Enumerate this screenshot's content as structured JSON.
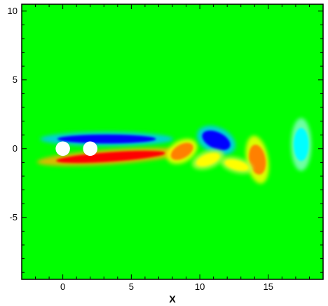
{
  "chart_data": {
    "type": "heatmap",
    "title": "",
    "xlabel": "X",
    "ylabel": "",
    "xlim": [
      -3,
      19
    ],
    "ylim": [
      -9.5,
      10.5
    ],
    "x_ticks": [
      0,
      5,
      10,
      15
    ],
    "y_ticks": [
      -5,
      0,
      5,
      10
    ],
    "x_tick_labels": [
      "0",
      "5",
      "10",
      "15"
    ],
    "y_tick_labels": [
      "-5",
      "0",
      "5",
      "10"
    ],
    "background_color": "#00ff00",
    "colors": {
      "strong_negative": "#0000ff",
      "negative": "#00a0ff",
      "weak_negative": "#00ffff",
      "weak_positive": "#ffff00",
      "positive": "#ff8000",
      "strong_positive": "#ff0000"
    },
    "cylinders": [
      {
        "x": 0,
        "y": 0,
        "r": 0.5
      },
      {
        "x": 2,
        "y": 0,
        "r": 0.5
      }
    ],
    "vortices": [
      {
        "type": "upper-shear-layer",
        "x": 3.2,
        "y": 0.7,
        "rx": 3.6,
        "ry": 0.32,
        "rot": 0,
        "color": "#0000ff"
      },
      {
        "type": "lower-shear-layer",
        "x": 3.5,
        "y": -0.6,
        "rx": 4.0,
        "ry": 0.34,
        "rot": 4,
        "color": "#ff0000"
      },
      {
        "type": "vortex",
        "x": 8.7,
        "y": -0.2,
        "rx": 0.9,
        "ry": 0.5,
        "rot": 30,
        "color": "#ff8000"
      },
      {
        "type": "vortex",
        "x": 11.2,
        "y": 0.6,
        "rx": 1.1,
        "ry": 0.6,
        "rot": -25,
        "color": "#0000ff"
      },
      {
        "type": "vortex",
        "x": 10.6,
        "y": -0.8,
        "rx": 0.9,
        "ry": 0.4,
        "rot": 20,
        "color": "#ffff00"
      },
      {
        "type": "vortex",
        "x": 14.2,
        "y": -0.8,
        "rx": 0.6,
        "ry": 1.1,
        "rot": 10,
        "color": "#ff8000"
      },
      {
        "type": "vortex",
        "x": 12.7,
        "y": -1.2,
        "rx": 0.9,
        "ry": 0.35,
        "rot": -15,
        "color": "#ffff00"
      },
      {
        "type": "vortex",
        "x": 17.4,
        "y": 0.3,
        "rx": 0.55,
        "ry": 1.2,
        "rot": 0,
        "color": "#00ffff"
      }
    ]
  }
}
